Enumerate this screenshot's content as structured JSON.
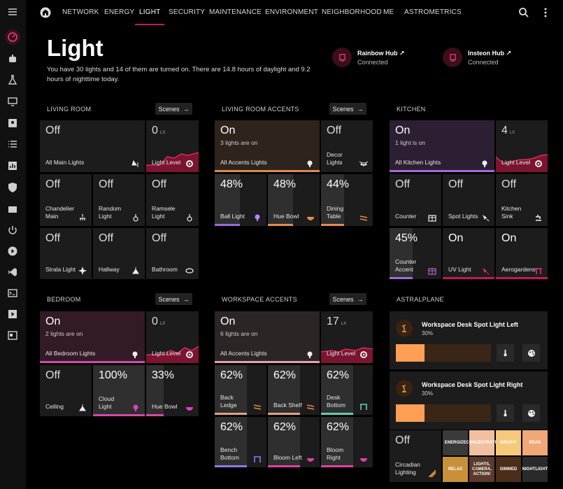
{
  "nav": {
    "tabs": [
      "NETWORK",
      "ENERGY",
      "LIGHT",
      "SECURITY",
      "MAINTENANCE",
      "ENVIRONMENT",
      "NEIGHBORHOOD",
      "ME",
      "ASTROMETRICS"
    ],
    "active": "LIGHT"
  },
  "sidebar": [
    "menu-icon",
    "speedometer-icon",
    "robot-icon",
    "flask-icon",
    "monitor-icon",
    "account-box-icon",
    "list-icon",
    "chart-box-icon",
    "shield-check-icon",
    "hacs-icon",
    "power-icon",
    "play-circle-icon",
    "vscode-icon",
    "terminal-icon",
    "play-box-icon",
    "calendar-icon"
  ],
  "header": {
    "title": "Light",
    "subtitle": "You have 30 lights and 14 of them are turned on. There are 14.8 hours of daylight and 9.2 hours of nighttime today."
  },
  "hubs": [
    {
      "name": "Rainbow Hub ↗",
      "status": "Connected"
    },
    {
      "name": "Insteon Hub ↗",
      "status": "Connected"
    }
  ],
  "scenes_label": "Scenes",
  "sections": {
    "living_room": "LIVING ROOM",
    "living_room_accents": "LIVING ROOM ACCENTS",
    "kitchen": "KITCHEN",
    "bedroom": "BEDROOM",
    "workspace_accents": "WORKSPACE ACCENTS",
    "astralplane": "ASTRALPLANE"
  },
  "living_room": {
    "main": {
      "state": "Off",
      "label": "All Main Lights"
    },
    "level": {
      "value": "0",
      "unit": "LX",
      "label": "Light Level"
    },
    "tiles": [
      {
        "state": "Off",
        "label": "Chandelier Main"
      },
      {
        "state": "Off",
        "label": "Random Light"
      },
      {
        "state": "Off",
        "label": "Ramsele Light"
      },
      {
        "state": "Off",
        "label": "Strala Light"
      },
      {
        "state": "Off",
        "label": "Hallway"
      },
      {
        "state": "Off",
        "label": "Bathroom"
      }
    ]
  },
  "living_room_accents": {
    "main": {
      "state": "On",
      "sub": "3 lights are on",
      "label": "All Accents Lights"
    },
    "decor": {
      "state": "Off",
      "label": "Decor Lights"
    },
    "tiles": [
      {
        "state": "48%",
        "label": "Ball Light",
        "level": 0.48
      },
      {
        "state": "48%",
        "label": "Hue Bowl",
        "level": 0.48
      },
      {
        "state": "44%",
        "label": "Dining Table",
        "level": 0.44
      }
    ]
  },
  "kitchen": {
    "main": {
      "state": "On",
      "sub": "1 light is on",
      "label": "All Kitchen Lights"
    },
    "level": {
      "value": "4",
      "unit": "LX",
      "label": "Light Level"
    },
    "tiles": [
      {
        "state": "Off",
        "label": "Counter"
      },
      {
        "state": "Off",
        "label": "Spot Lights"
      },
      {
        "state": "Off",
        "label": "Kitchen Sink"
      },
      {
        "state": "45%",
        "label": "Counter Accent",
        "level": 0.45
      },
      {
        "state": "On",
        "label": "UV Light"
      },
      {
        "state": "On",
        "label": "Aerogardens"
      }
    ]
  },
  "bedroom": {
    "main": {
      "state": "On",
      "sub": "2 lights are on",
      "label": "All Bedroom Lights"
    },
    "level": {
      "value": "0",
      "unit": "LX",
      "label": "Light Level"
    },
    "tiles": [
      {
        "state": "Off",
        "label": "Ceiling"
      },
      {
        "state": "100%",
        "label": "Cloud Light",
        "level": 1.0
      },
      {
        "state": "33%",
        "label": "Hue Bowl",
        "level": 0.33
      }
    ]
  },
  "workspace_accents": {
    "main": {
      "state": "On",
      "sub": "6 lights are on",
      "label": "All Accents Lights"
    },
    "level": {
      "value": "17",
      "unit": "LX",
      "label": "Light Level"
    },
    "tiles": [
      {
        "state": "62%",
        "label": "Back Ledge",
        "level": 0.62
      },
      {
        "state": "62%",
        "label": "Back Shelf",
        "level": 0.62
      },
      {
        "state": "62%",
        "label": "Desk Bottom",
        "level": 0.62
      },
      {
        "state": "62%",
        "label": "Bench Bottom",
        "level": 0.62
      },
      {
        "state": "62%",
        "label": "Bloom Left",
        "level": 0.62
      },
      {
        "state": "62%",
        "label": "Bloom Right",
        "level": 0.62
      }
    ]
  },
  "astralplane": {
    "lights": [
      {
        "name": "Workspace Desk Spot Light Left",
        "pct": "30%",
        "level": 0.3
      },
      {
        "name": "Workspace Desk Spot Light Right",
        "pct": "30%",
        "level": 0.3
      }
    ],
    "circadian": {
      "state": "Off",
      "label": "Circadian Lighting"
    },
    "scenes": [
      "ENERGIZE",
      "CONCENTRATE",
      "BRIGHT",
      "READ",
      "RELAX",
      "LIGHTS, CAMERA, ACTION!",
      "DIMMED",
      "NIGHTLIGHT"
    ]
  }
}
